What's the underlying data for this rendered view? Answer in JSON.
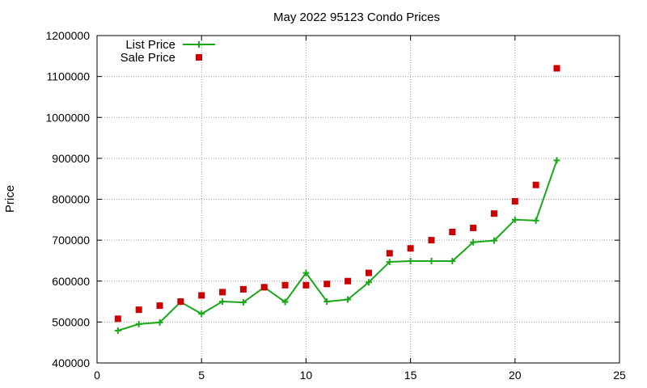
{
  "chart_data": {
    "type": "line",
    "title": "May 2022 95123 Condo Prices",
    "xlabel": "",
    "ylabel": "Price",
    "xlim": [
      0,
      25
    ],
    "ylim": [
      400000,
      1200000
    ],
    "x_ticks": [
      0,
      5,
      10,
      15,
      20,
      25
    ],
    "y_ticks": [
      400000,
      500000,
      600000,
      700000,
      800000,
      900000,
      1000000,
      1100000,
      1200000
    ],
    "grid": true,
    "legend_position": "top-left",
    "series": [
      {
        "name": "List Price",
        "style": "linespoints",
        "marker": "plus",
        "color": "#1aa81a",
        "x": [
          1,
          2,
          3,
          4,
          5,
          6,
          7,
          8,
          9,
          10,
          11,
          12,
          13,
          14,
          15,
          16,
          17,
          18,
          19,
          20,
          21,
          22
        ],
        "y": [
          479000,
          495000,
          499000,
          549000,
          520000,
          550000,
          548000,
          585000,
          549000,
          620000,
          550000,
          555000,
          597000,
          647000,
          649000,
          649000,
          649000,
          695000,
          699000,
          750000,
          748000,
          895000
        ]
      },
      {
        "name": "Sale Price",
        "style": "points",
        "marker": "square",
        "color": "#cc0000",
        "x": [
          1,
          2,
          3,
          4,
          5,
          6,
          7,
          8,
          9,
          10,
          11,
          12,
          13,
          14,
          15,
          16,
          17,
          18,
          19,
          20,
          21,
          22
        ],
        "y": [
          508000,
          530000,
          540000,
          550000,
          565000,
          573000,
          580000,
          585000,
          590000,
          590000,
          593000,
          600000,
          620000,
          668000,
          680000,
          700000,
          720000,
          730000,
          765000,
          795000,
          835000,
          1120000
        ]
      }
    ]
  }
}
